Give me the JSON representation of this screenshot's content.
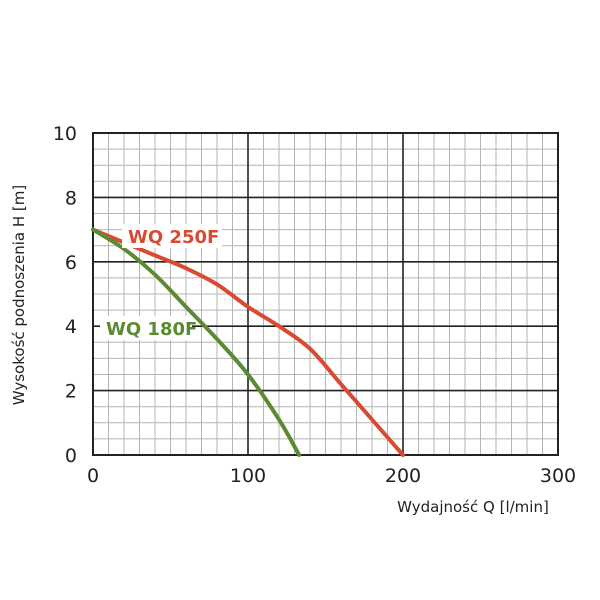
{
  "chart_data": {
    "type": "line",
    "xlabel": "Wydajność Q [l/min]",
    "ylabel": "Wysokość podnoszenia H [m]",
    "xlim": [
      0,
      300
    ],
    "ylim": [
      0,
      10
    ],
    "x_ticks": [
      "0",
      "100",
      "200",
      "300"
    ],
    "y_ticks": [
      "0",
      "2",
      "4",
      "6",
      "8",
      "10"
    ],
    "grid": true,
    "legend": "inline labels",
    "series": [
      {
        "name": "WQ 250F",
        "color": "#d94a33",
        "points": [
          [
            0,
            7.0
          ],
          [
            20,
            6.6
          ],
          [
            40,
            6.2
          ],
          [
            60,
            5.8
          ],
          [
            80,
            5.3
          ],
          [
            100,
            4.6
          ],
          [
            120,
            4.0
          ],
          [
            140,
            3.3
          ],
          [
            160,
            2.2
          ],
          [
            180,
            1.1
          ],
          [
            200,
            0
          ]
        ]
      },
      {
        "name": "WQ 180F",
        "color": "#5a8a32",
        "points": [
          [
            0,
            7.0
          ],
          [
            20,
            6.4
          ],
          [
            40,
            5.6
          ],
          [
            60,
            4.6
          ],
          [
            80,
            3.6
          ],
          [
            100,
            2.5
          ],
          [
            120,
            1.1
          ],
          [
            133,
            0
          ]
        ]
      }
    ]
  }
}
